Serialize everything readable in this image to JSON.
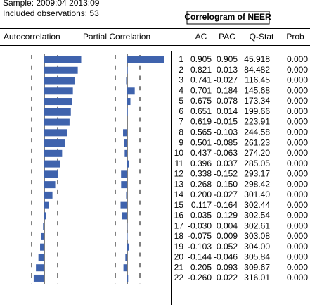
{
  "header": {
    "sample": "Sample: 2009:04 2013:09",
    "observations": "Included observations: 53",
    "title": "Correlogram of NEER"
  },
  "table": {
    "columns": [
      "Autocorrelation",
      "Partial Correlation",
      "AC",
      "PAC",
      "Q-Stat",
      "Prob"
    ],
    "rows": [
      [
        "1",
        "0.905",
        "0.905",
        "45.918",
        "0.000"
      ],
      [
        "2",
        "0.821",
        "0.013",
        "84.482",
        "0.000"
      ],
      [
        "3",
        "0.741",
        "-0.027",
        "116.45",
        "0.000"
      ],
      [
        "4",
        "0.701",
        "0.184",
        "145.68",
        "0.000"
      ],
      [
        "5",
        "0.675",
        "0.078",
        "173.34",
        "0.000"
      ],
      [
        "6",
        "0.651",
        "0.014",
        "199.66",
        "0.000"
      ],
      [
        "7",
        "0.619",
        "-0.015",
        "223.91",
        "0.000"
      ],
      [
        "8",
        "0.565",
        "-0.103",
        "244.58",
        "0.000"
      ],
      [
        "9",
        "0.501",
        "-0.085",
        "261.23",
        "0.000"
      ],
      [
        "10",
        "0.437",
        "-0.063",
        "274.20",
        "0.000"
      ],
      [
        "11",
        "0.396",
        "0.037",
        "285.05",
        "0.000"
      ],
      [
        "12",
        "0.338",
        "-0.152",
        "293.17",
        "0.000"
      ],
      [
        "13",
        "0.268",
        "-0.150",
        "298.42",
        "0.000"
      ],
      [
        "14",
        "0.200",
        "-0.027",
        "301.40",
        "0.000"
      ],
      [
        "15",
        "0.117",
        "-0.164",
        "302.44",
        "0.000"
      ],
      [
        "16",
        "0.035",
        "-0.129",
        "302.54",
        "0.000"
      ],
      [
        "17",
        "-0.030",
        "0.004",
        "302.61",
        "0.000"
      ],
      [
        "18",
        "-0.075",
        "0.009",
        "303.08",
        "0.000"
      ],
      [
        "19",
        "-0.103",
        "0.052",
        "304.00",
        "0.000"
      ],
      [
        "20",
        "-0.144",
        "-0.046",
        "305.84",
        "0.000"
      ],
      [
        "21",
        "-0.205",
        "-0.093",
        "309.67",
        "0.000"
      ],
      [
        "22",
        "-0.260",
        "0.022",
        "316.01",
        "0.000"
      ]
    ]
  }
}
